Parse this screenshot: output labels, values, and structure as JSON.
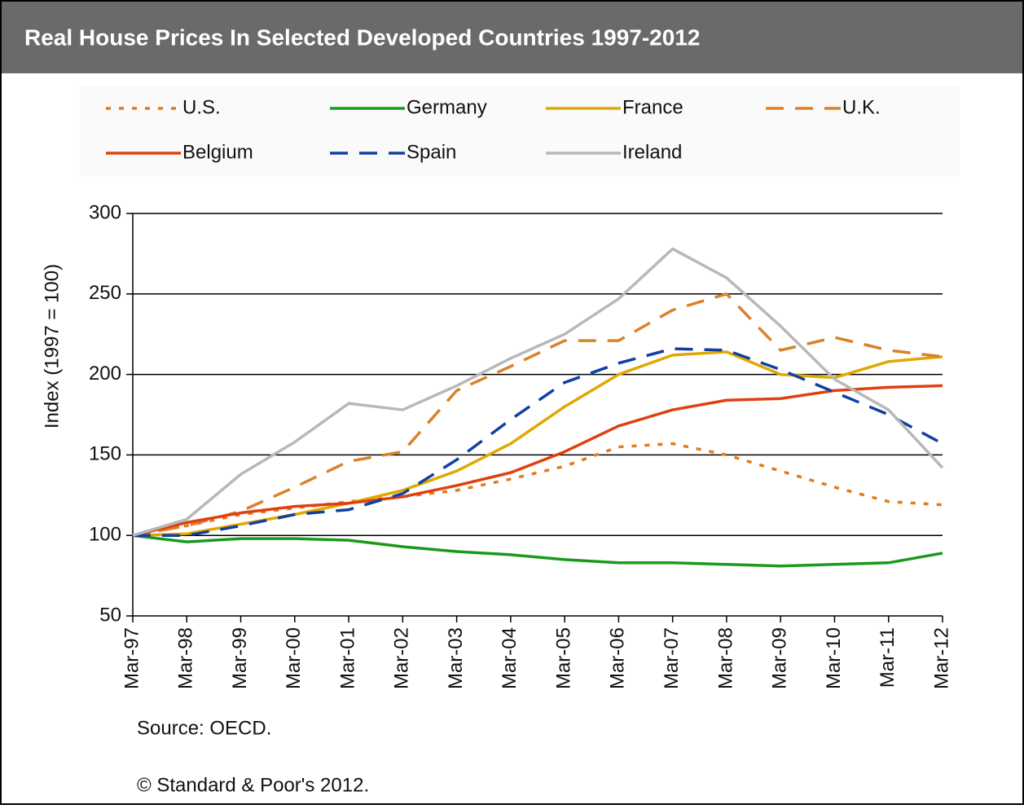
{
  "chart_data": {
    "type": "line",
    "title": "Real House Prices In Selected Developed Countries 1997-2012",
    "y_label": "Index (1997 = 100)",
    "source": "Source: OECD.",
    "copyright": "© Standard & Poor's 2012.",
    "categories": [
      "Mar-97",
      "Mar-98",
      "Mar-99",
      "Mar-00",
      "Mar-01",
      "Mar-02",
      "Mar-03",
      "Mar-04",
      "Mar-05",
      "Mar-06",
      "Mar-07",
      "Mar-08",
      "Mar-09",
      "Mar-10",
      "Mar-11",
      "Mar-12"
    ],
    "ylim": [
      50,
      300
    ],
    "yticks": [
      50,
      100,
      150,
      200,
      250,
      300
    ],
    "grid": true,
    "series": [
      {
        "name": "U.S.",
        "color": "#e07b20",
        "dash": "dotted",
        "values": [
          100,
          106,
          113,
          117,
          121,
          124,
          128,
          135,
          143,
          155,
          157,
          150,
          140,
          130,
          121,
          119
        ]
      },
      {
        "name": "Germany",
        "color": "#1a9a1a",
        "dash": "solid",
        "values": [
          100,
          96,
          98,
          98,
          97,
          93,
          90,
          88,
          85,
          83,
          83,
          82,
          81,
          82,
          83,
          89
        ]
      },
      {
        "name": "France",
        "color": "#e0a800",
        "dash": "solid",
        "values": [
          100,
          101,
          107,
          113,
          120,
          128,
          140,
          157,
          180,
          200,
          212,
          214,
          200,
          198,
          208,
          211
        ]
      },
      {
        "name": "U.K.",
        "color": "#d9822b",
        "dash": "dashed",
        "values": [
          100,
          106,
          115,
          130,
          146,
          152,
          190,
          205,
          221,
          221,
          240,
          250,
          215,
          223,
          215,
          211
        ]
      },
      {
        "name": "Belgium",
        "color": "#e04010",
        "dash": "solid",
        "values": [
          100,
          108,
          114,
          118,
          120,
          124,
          131,
          139,
          152,
          168,
          178,
          184,
          185,
          190,
          192,
          193
        ]
      },
      {
        "name": "Spain",
        "color": "#1040a0",
        "dash": "dashed",
        "values": [
          100,
          100,
          106,
          113,
          116,
          126,
          147,
          172,
          195,
          207,
          216,
          215,
          203,
          189,
          175,
          157
        ]
      },
      {
        "name": "Ireland",
        "color": "#b8b8b8",
        "dash": "solid",
        "values": [
          100,
          110,
          138,
          158,
          182,
          178,
          193,
          210,
          225,
          247,
          278,
          260,
          230,
          197,
          178,
          142
        ]
      }
    ]
  }
}
